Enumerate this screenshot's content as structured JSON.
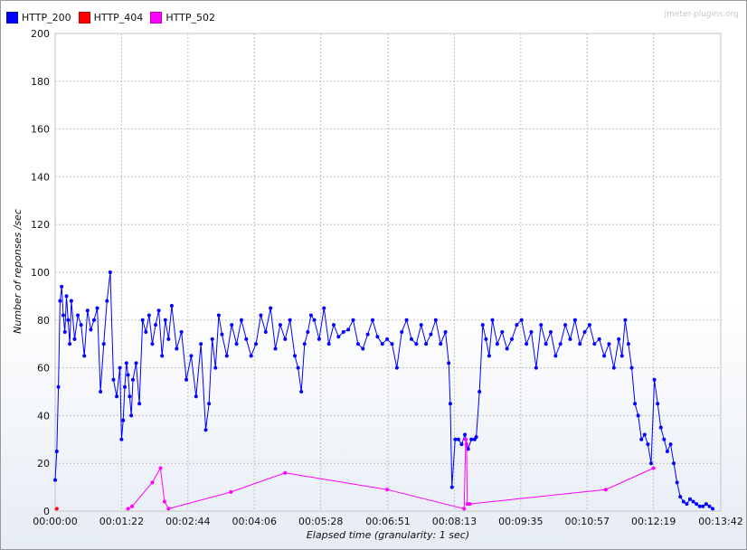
{
  "watermark": "jmeter-plugins.org",
  "chart_data": {
    "type": "line",
    "title": "",
    "xlabel": "Elapsed time (granularity: 1 sec)",
    "ylabel": "Number of reponses /sec",
    "ylim": [
      0,
      200
    ],
    "y_ticks": [
      0,
      20,
      40,
      60,
      80,
      100,
      120,
      140,
      160,
      180,
      200
    ],
    "x_unit": "seconds",
    "xlim": [
      0,
      822
    ],
    "x_tick_values": [
      0,
      82,
      164,
      246,
      328,
      411,
      493,
      575,
      657,
      739,
      822
    ],
    "x_tick_labels": [
      "00:00:00",
      "00:01:22",
      "00:02:44",
      "00:04:06",
      "00:05:28",
      "00:06:51",
      "00:08:13",
      "00:09:35",
      "00:10:57",
      "00:12:19",
      "00:13:42"
    ],
    "grid": true,
    "legend_position": "top-left",
    "series": [
      {
        "name": "HTTP_200",
        "color": "#0000ff",
        "x": [
          0,
          2,
          4,
          6,
          8,
          10,
          12,
          14,
          16,
          18,
          20,
          24,
          28,
          32,
          36,
          40,
          44,
          48,
          52,
          56,
          60,
          64,
          68,
          72,
          76,
          80,
          82,
          84,
          86,
          88,
          90,
          92,
          94,
          96,
          100,
          104,
          108,
          112,
          116,
          120,
          124,
          128,
          132,
          136,
          140,
          144,
          150,
          156,
          162,
          168,
          174,
          180,
          186,
          190,
          194,
          198,
          202,
          206,
          212,
          218,
          224,
          230,
          236,
          242,
          248,
          254,
          260,
          266,
          272,
          278,
          284,
          290,
          296,
          300,
          304,
          308,
          312,
          316,
          320,
          326,
          332,
          338,
          344,
          350,
          356,
          362,
          368,
          374,
          380,
          386,
          392,
          398,
          404,
          410,
          416,
          422,
          428,
          434,
          440,
          446,
          452,
          458,
          464,
          470,
          476,
          482,
          486,
          488,
          490,
          494,
          498,
          502,
          506,
          510,
          514,
          518,
          520,
          524,
          528,
          532,
          536,
          540,
          546,
          552,
          558,
          564,
          570,
          576,
          582,
          588,
          594,
          600,
          606,
          612,
          618,
          624,
          630,
          636,
          642,
          648,
          654,
          660,
          666,
          672,
          678,
          684,
          690,
          696,
          700,
          704,
          708,
          712,
          716,
          720,
          724,
          728,
          732,
          736,
          740,
          744,
          748,
          752,
          756,
          760,
          764,
          768,
          772,
          776,
          780,
          784,
          788,
          792,
          796,
          800,
          804,
          808,
          812
        ],
        "values": [
          13,
          25,
          52,
          88,
          94,
          82,
          75,
          90,
          80,
          70,
          88,
          72,
          82,
          78,
          65,
          84,
          76,
          80,
          85,
          50,
          70,
          88,
          100,
          55,
          48,
          60,
          30,
          38,
          52,
          62,
          57,
          48,
          40,
          55,
          62,
          45,
          80,
          75,
          82,
          70,
          78,
          84,
          65,
          80,
          72,
          86,
          68,
          75,
          55,
          65,
          48,
          70,
          34,
          45,
          72,
          60,
          82,
          74,
          65,
          78,
          70,
          80,
          72,
          65,
          70,
          82,
          75,
          85,
          68,
          78,
          72,
          80,
          65,
          60,
          50,
          70,
          75,
          82,
          80,
          72,
          85,
          70,
          78,
          73,
          75,
          76,
          80,
          70,
          68,
          74,
          80,
          73,
          70,
          72,
          70,
          60,
          75,
          80,
          72,
          70,
          78,
          70,
          74,
          80,
          70,
          75,
          62,
          45,
          10,
          30,
          30,
          28,
          32,
          26,
          30,
          30,
          31,
          50,
          78,
          72,
          65,
          80,
          70,
          75,
          68,
          72,
          78,
          80,
          70,
          75,
          60,
          78,
          70,
          75,
          65,
          70,
          78,
          72,
          80,
          70,
          75,
          78,
          70,
          72,
          65,
          70,
          60,
          72,
          65,
          80,
          70,
          60,
          45,
          40,
          30,
          32,
          28,
          20,
          55,
          45,
          35,
          30,
          25,
          28,
          20,
          12,
          6,
          4,
          3,
          5,
          4,
          3,
          2,
          2,
          3,
          2,
          1
        ]
      },
      {
        "name": "HTTP_404",
        "color": "#ff0000",
        "x": [
          2
        ],
        "values": [
          1
        ]
      },
      {
        "name": "HTTP_502",
        "color": "#ff00ff",
        "x": [
          90,
          95,
          120,
          130,
          135,
          140,
          217,
          284,
          410,
          505,
          507,
          508,
          509,
          512,
          680,
          739
        ],
        "values": [
          1,
          2,
          12,
          18,
          4,
          1,
          8,
          16,
          9,
          1,
          30,
          28,
          3,
          3,
          9,
          18
        ]
      }
    ]
  }
}
